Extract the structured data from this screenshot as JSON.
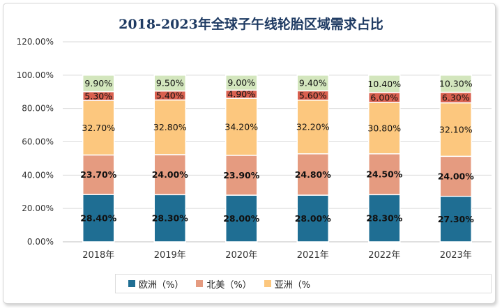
{
  "chart_data": {
    "type": "bar",
    "stacked": true,
    "title": "2018-2023年全球子午线轮胎区域需求占比",
    "categories": [
      "2018年",
      "2019年",
      "2020年",
      "2021年",
      "2022年",
      "2023年"
    ],
    "ylim": [
      0,
      120
    ],
    "yticks": [
      "0.00%",
      "20.00%",
      "40.00%",
      "60.00%",
      "80.00%",
      "100.00%",
      "120.00%"
    ],
    "grid": true,
    "legend_position": "bottom",
    "series": [
      {
        "name": "欧洲（%）",
        "color": "#1f6e93",
        "values": [
          28.4,
          28.3,
          28.0,
          28.0,
          28.3,
          27.3
        ],
        "labels": [
          "28.40%",
          "28.30%",
          "28.00%",
          "28.00%",
          "28.30%",
          "27.30%"
        ]
      },
      {
        "name": "北美（%）",
        "color": "#e59b80",
        "values": [
          23.7,
          24.0,
          23.9,
          24.8,
          24.5,
          24.0
        ],
        "labels": [
          "23.70%",
          "24.00%",
          "23.90%",
          "24.80%",
          "24.50%",
          "24.00%"
        ]
      },
      {
        "name": "亚洲（%",
        "color": "#fcc77e",
        "values": [
          32.7,
          32.8,
          34.2,
          32.2,
          30.8,
          32.1
        ],
        "labels": [
          "32.70%",
          "32.80%",
          "34.20%",
          "32.20%",
          "30.80%",
          "32.10%"
        ]
      },
      {
        "name": "",
        "color": "#d9604f",
        "values": [
          5.3,
          5.4,
          4.9,
          5.6,
          6.0,
          6.3
        ],
        "labels": [
          "5.30%",
          "5.40%",
          "4.90%",
          "5.60%",
          "6.00%",
          "6.30%"
        ]
      },
      {
        "name": "",
        "color": "#d3e6bd",
        "values": [
          9.9,
          9.5,
          9.0,
          9.4,
          10.4,
          10.3
        ],
        "labels": [
          "9.90%",
          "9.50%",
          "9.00%",
          "9.40%",
          "10.40%",
          "10.30%"
        ]
      }
    ]
  }
}
